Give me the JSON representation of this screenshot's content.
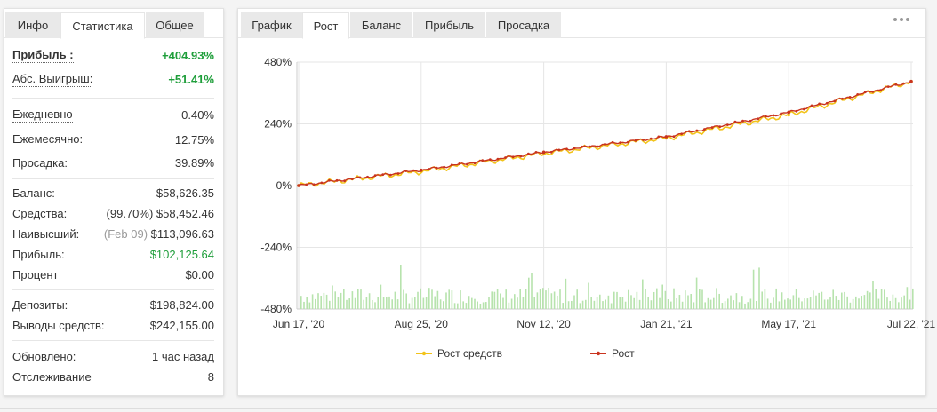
{
  "left": {
    "tabs": [
      {
        "label": "Инфо"
      },
      {
        "label": "Статистика"
      },
      {
        "label": "Общее"
      }
    ],
    "rows": [
      {
        "label": "Прибыль :",
        "value": "+404.93%"
      },
      {
        "label": "Абс. Выигрыш:",
        "value": "+51.41%"
      },
      {
        "label": "Ежедневно",
        "value": "0.40%"
      },
      {
        "label": "Ежемесячно:",
        "value": "12.75%"
      },
      {
        "label": "Просадка:",
        "value": "39.89%"
      },
      {
        "label": "Баланс:",
        "value": "$58,626.35"
      },
      {
        "label": "Средства:",
        "prefix": "(99.70%)",
        "value": "$58,452.46"
      },
      {
        "label": "Наивысший:",
        "prefix": "(Feb 09)",
        "value": "$113,096.63"
      },
      {
        "label": "Прибыль:",
        "value": "$102,125.64"
      },
      {
        "label": "Процент",
        "value": "$0.00"
      },
      {
        "label": "Депозиты:",
        "value": "$198,824.00"
      },
      {
        "label": "Выводы средств:",
        "value": "$242,155.00"
      },
      {
        "label": "Обновлено:",
        "value": "1 час назад"
      },
      {
        "label": "Отслеживание",
        "value": "8"
      }
    ]
  },
  "right": {
    "tabs": [
      {
        "label": "График"
      },
      {
        "label": "Рост"
      },
      {
        "label": "Баланс"
      },
      {
        "label": "Прибыль"
      },
      {
        "label": "Просадка"
      }
    ],
    "more_icon": "more-dots-icon"
  },
  "colors": {
    "green": "#1e9e3a",
    "equity": "#f2c319",
    "growth": "#c9341f",
    "bars": "#b7e3ad"
  },
  "chart_data": {
    "type": "line",
    "title": "",
    "xlabel": "",
    "ylabel": "",
    "yticks": [
      "480%",
      "240%",
      "0%",
      "-240%",
      "-480%"
    ],
    "ylim": [
      -480,
      480
    ],
    "xticks": [
      "Jun 17, '20",
      "Aug 25, '20",
      "Nov 12, '20",
      "Jan 21, '21",
      "May 17, '21",
      "Jul 22, '21"
    ],
    "grid": true,
    "legend_position": "bottom-center",
    "series": [
      {
        "name": "Рост средств",
        "color": "#f2c319",
        "x": [
          "Jun 17, '20",
          "Aug 25, '20",
          "Nov 12, '20",
          "Jan 21, '21",
          "May 17, '21",
          "Jul 22, '21"
        ],
        "values": [
          0,
          55,
          125,
          185,
          275,
          405
        ]
      },
      {
        "name": "Рост",
        "color": "#c9341f",
        "x": [
          "Jun 17, '20",
          "Aug 25, '20",
          "Nov 12, '20",
          "Jan 21, '21",
          "May 17, '21",
          "Jul 22, '21"
        ],
        "values": [
          0,
          60,
          130,
          190,
          285,
          405
        ]
      }
    ],
    "bars_series": {
      "note_free": true,
      "baseline": -480
    }
  }
}
